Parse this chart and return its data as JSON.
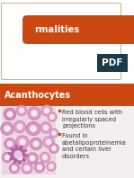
{
  "title_text": "rmalities",
  "title_bg_color": "#CC4813",
  "title_text_color": "#ffffff",
  "slide_bg_color": "#ffffff",
  "border_color": "#C8B878",
  "section2_label": "Acanthocytes",
  "section2_label_color": "#ffffff",
  "section2_bg_color": "#CC4813",
  "section2_content_bg": "#f5eeee",
  "bullet_color": "#CC4813",
  "bullet1": "Red blood cells with\nirregularly spaced\nprojections",
  "bullet2": "Found in\nabetalipoproteinemia\nand certain liver\ndisorders",
  "content_text_color": "#333333",
  "text_fontsize": 4.8,
  "label_fontsize": 7.0,
  "pdf_bg": "#1A3A4A",
  "pdf_text_color": "#ffffff",
  "fig_width": 1.49,
  "fig_height": 1.98,
  "dpi": 100
}
